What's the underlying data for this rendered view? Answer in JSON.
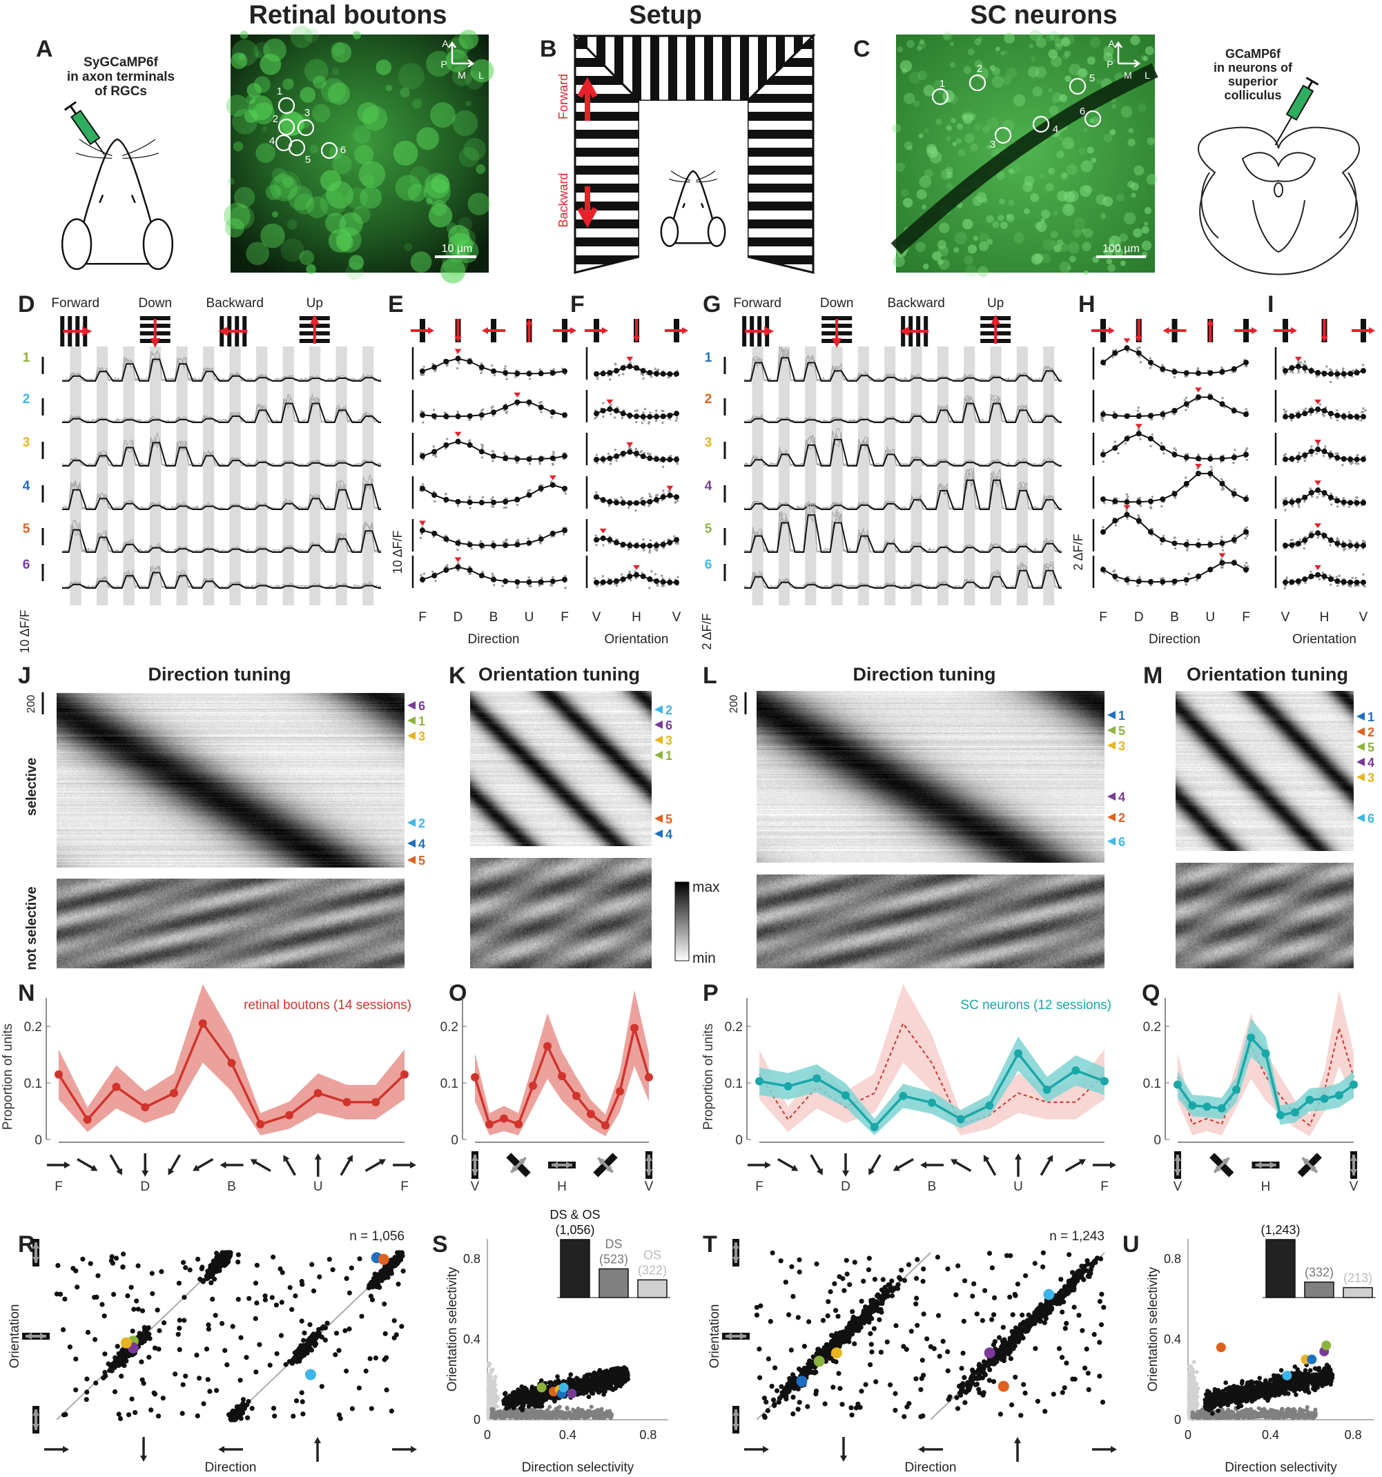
{
  "titles": {
    "retina": "Retinal boutons",
    "setup": "Setup",
    "sc": "SC neurons"
  },
  "panel_labels": {
    "A": "A",
    "B": "B",
    "C": "C",
    "D": "D",
    "E": "E",
    "F": "F",
    "G": "G",
    "H": "H",
    "I": "I",
    "J": "J",
    "K": "K",
    "L": "L",
    "M": "M",
    "N": "N",
    "O": "O",
    "P": "P",
    "Q": "Q",
    "R": "R",
    "S": "S",
    "T": "T",
    "U": "U"
  },
  "panelA": {
    "lines": [
      "SyGCaMP6f",
      "in axon terminals",
      "of RGCs"
    ]
  },
  "panelC": {
    "lines": [
      "GCaMP6f",
      "in neurons of",
      "superior",
      "colliculus"
    ]
  },
  "retina_image": {
    "rois": [
      "1",
      "2",
      "3",
      "4",
      "5",
      "6"
    ],
    "scale_bar": "10 µm",
    "compass": {
      "a": "A",
      "p": "P",
      "m": "M",
      "l": "L"
    }
  },
  "sc_image": {
    "rois": [
      "1",
      "2",
      "3",
      "4",
      "5",
      "6"
    ],
    "scale_bar": "100 µm",
    "compass": {
      "a": "A",
      "p": "P",
      "m": "M",
      "l": "L"
    }
  },
  "setup": {
    "forward": "Forward",
    "backward": "Backward",
    "arrow_color": "#e8202a"
  },
  "colors": {
    "retina": "#d0342c",
    "retina_band": "#e8928c",
    "sc": "#1aa7a8",
    "sc_band": "#7fd3d3",
    "u_green": "#8cb43c",
    "u_lightblue": "#3cb6e8",
    "u_yellow": "#e8b420",
    "u_blue": "#1f6fc0",
    "u_orange": "#e0601e",
    "u_purple": "#7a3a98"
  },
  "traces": {
    "stim_labels": [
      "Forward",
      "Down",
      "Backward",
      "Up"
    ],
    "retina_scale": "10 ΔF/F",
    "sc_scale": "2 ΔF/F",
    "retina_units": [
      {
        "label": "1",
        "color": "#8cb43c"
      },
      {
        "label": "2",
        "color": "#3cb6e8"
      },
      {
        "label": "3",
        "color": "#e8b420"
      },
      {
        "label": "4",
        "color": "#1f6fc0"
      },
      {
        "label": "5",
        "color": "#e0601e"
      },
      {
        "label": "6",
        "color": "#7a3a98"
      }
    ],
    "sc_units": [
      {
        "label": "1",
        "color": "#1f6fc0"
      },
      {
        "label": "2",
        "color": "#e0601e"
      },
      {
        "label": "3",
        "color": "#e8b420"
      },
      {
        "label": "4",
        "color": "#7a3a98"
      },
      {
        "label": "5",
        "color": "#8cb43c"
      },
      {
        "label": "6",
        "color": "#3cb6e8"
      }
    ]
  },
  "tuning": {
    "direction_ticks": [
      "F",
      "D",
      "B",
      "U",
      "F"
    ],
    "orientation_ticks": [
      "V",
      "H",
      "V"
    ],
    "direction_label": "Direction",
    "orientation_label": "Orientation"
  },
  "heatmaps": {
    "titles": [
      "Direction tuning",
      "Orientation tuning",
      "Direction tuning",
      "Orientation tuning"
    ],
    "scale": "200",
    "selective": "selective",
    "not_selective": "not selective",
    "colorbar": {
      "max": "max",
      "min": "min"
    },
    "markers": {
      "J": [
        {
          "label": "6",
          "color": "#7a3a98"
        },
        {
          "label": "1",
          "color": "#8cb43c"
        },
        {
          "label": "3",
          "color": "#e8b420"
        },
        {
          "label": "2",
          "color": "#3cb6e8"
        },
        {
          "label": "4",
          "color": "#1f6fc0"
        },
        {
          "label": "5",
          "color": "#e0601e"
        }
      ],
      "K": [
        {
          "label": "2",
          "color": "#3cb6e8"
        },
        {
          "label": "6",
          "color": "#7a3a98"
        },
        {
          "label": "3",
          "color": "#e8b420"
        },
        {
          "label": "1",
          "color": "#8cb43c"
        },
        {
          "label": "5",
          "color": "#e0601e"
        },
        {
          "label": "4",
          "color": "#1f6fc0"
        }
      ],
      "L": [
        {
          "label": "1",
          "color": "#1f6fc0"
        },
        {
          "label": "5",
          "color": "#8cb43c"
        },
        {
          "label": "3",
          "color": "#e8b420"
        },
        {
          "label": "4",
          "color": "#7a3a98"
        },
        {
          "label": "2",
          "color": "#e0601e"
        },
        {
          "label": "6",
          "color": "#3cb6e8"
        }
      ],
      "M": [
        {
          "label": "1",
          "color": "#1f6fc0"
        },
        {
          "label": "2",
          "color": "#e0601e"
        },
        {
          "label": "5",
          "color": "#8cb43c"
        },
        {
          "label": "4",
          "color": "#7a3a98"
        },
        {
          "label": "3",
          "color": "#e8b420"
        },
        {
          "label": "6",
          "color": "#3cb6e8"
        }
      ]
    }
  },
  "chart_data": [
    {
      "panel": "N",
      "type": "line",
      "ylabel": "Proportion of units",
      "annotation": "retinal boutons (14 sessions)",
      "xticks": [
        "F",
        "D",
        "B",
        "U",
        "F"
      ],
      "yticks": [
        "0",
        "0.1",
        "0.2"
      ],
      "ylim": [
        0,
        0.25
      ],
      "series": [
        {
          "name": "retinal boutons (14 sessions)",
          "color": "#d0342c",
          "values": [
            0.115,
            0.035,
            0.093,
            0.057,
            0.082,
            0.205,
            0.135,
            0.027,
            0.043,
            0.082,
            0.066,
            0.066,
            0.115
          ]
        }
      ]
    },
    {
      "panel": "O",
      "type": "line",
      "xticks": [
        "V",
        "H",
        "V"
      ],
      "yticks": [
        "0",
        "0.1",
        "0.2"
      ],
      "ylim": [
        0,
        0.25
      ],
      "series": [
        {
          "color": "#d0342c",
          "values": [
            0.11,
            0.027,
            0.037,
            0.027,
            0.095,
            0.165,
            0.112,
            0.077,
            0.045,
            0.025,
            0.085,
            0.197,
            0.11
          ]
        }
      ]
    },
    {
      "panel": "P",
      "type": "line",
      "ylabel": "Proportion of units",
      "annotation": "SC neurons (12 sessions)",
      "xticks": [
        "F",
        "D",
        "B",
        "U",
        "F"
      ],
      "yticks": [
        "0",
        "0.1",
        "0.2"
      ],
      "ylim": [
        0,
        0.25
      ],
      "series": [
        {
          "name": "SC neurons (12 sessions)",
          "color": "#1aa7a8",
          "values": [
            0.103,
            0.094,
            0.108,
            0.078,
            0.022,
            0.077,
            0.065,
            0.036,
            0.06,
            0.152,
            0.088,
            0.122,
            0.103
          ]
        },
        {
          "color": "#d0342c",
          "dashed": true,
          "values": [
            0.115,
            0.035,
            0.093,
            0.057,
            0.082,
            0.205,
            0.135,
            0.027,
            0.043,
            0.082,
            0.066,
            0.066,
            0.115
          ]
        }
      ]
    },
    {
      "panel": "Q",
      "type": "line",
      "xticks": [
        "V",
        "H",
        "V"
      ],
      "yticks": [
        "0",
        "0.1",
        "0.2"
      ],
      "ylim": [
        0,
        0.25
      ],
      "series": [
        {
          "color": "#1aa7a8",
          "values": [
            0.097,
            0.06,
            0.058,
            0.055,
            0.088,
            0.18,
            0.152,
            0.043,
            0.048,
            0.07,
            0.072,
            0.078,
            0.097
          ]
        },
        {
          "color": "#d0342c",
          "dashed": true,
          "values": [
            0.11,
            0.027,
            0.037,
            0.027,
            0.095,
            0.165,
            0.112,
            0.077,
            0.045,
            0.025,
            0.085,
            0.197,
            0.11
          ]
        }
      ]
    },
    {
      "panel": "R",
      "type": "scatter",
      "xlabel": "Direction",
      "ylabel": "Orientation",
      "annotation": "n = 1,056"
    },
    {
      "panel": "S",
      "type": "scatter",
      "xlabel": "Direction selectivity",
      "ylabel": "Orientation selectivity",
      "xticks": [
        "0",
        "0.4",
        "0.8"
      ],
      "yticks": [
        "0",
        "0.4",
        "0.8"
      ],
      "xlim": [
        0,
        0.8
      ],
      "ylim": [
        0,
        0.8
      ],
      "inset_bars": [
        {
          "label": "DS & OS",
          "count": "(1,056)",
          "value": 1056,
          "color": "#222222"
        },
        {
          "label": "DS",
          "count": "(523)",
          "value": 523,
          "color": "#808080"
        },
        {
          "label": "OS",
          "count": "(322)",
          "value": 322,
          "color": "#d0d0d0"
        }
      ]
    },
    {
      "panel": "T",
      "type": "scatter",
      "xlabel": "Direction",
      "ylabel": "Orientation",
      "annotation": "n = 1,243"
    },
    {
      "panel": "U",
      "type": "scatter",
      "xlabel": "Direction selectivity",
      "ylabel": "Orientation selectivity",
      "xticks": [
        "0",
        "0.4",
        "0.8"
      ],
      "yticks": [
        "0",
        "0.4",
        "0.8"
      ],
      "xlim": [
        0,
        0.8
      ],
      "ylim": [
        0,
        0.8
      ],
      "inset_bars": [
        {
          "label": "",
          "count": "(1,243)",
          "value": 1243,
          "color": "#222222"
        },
        {
          "label": "",
          "count": "(332)",
          "value": 332,
          "color": "#808080"
        },
        {
          "label": "",
          "count": "(213)",
          "value": 213,
          "color": "#d0d0d0"
        }
      ]
    }
  ]
}
